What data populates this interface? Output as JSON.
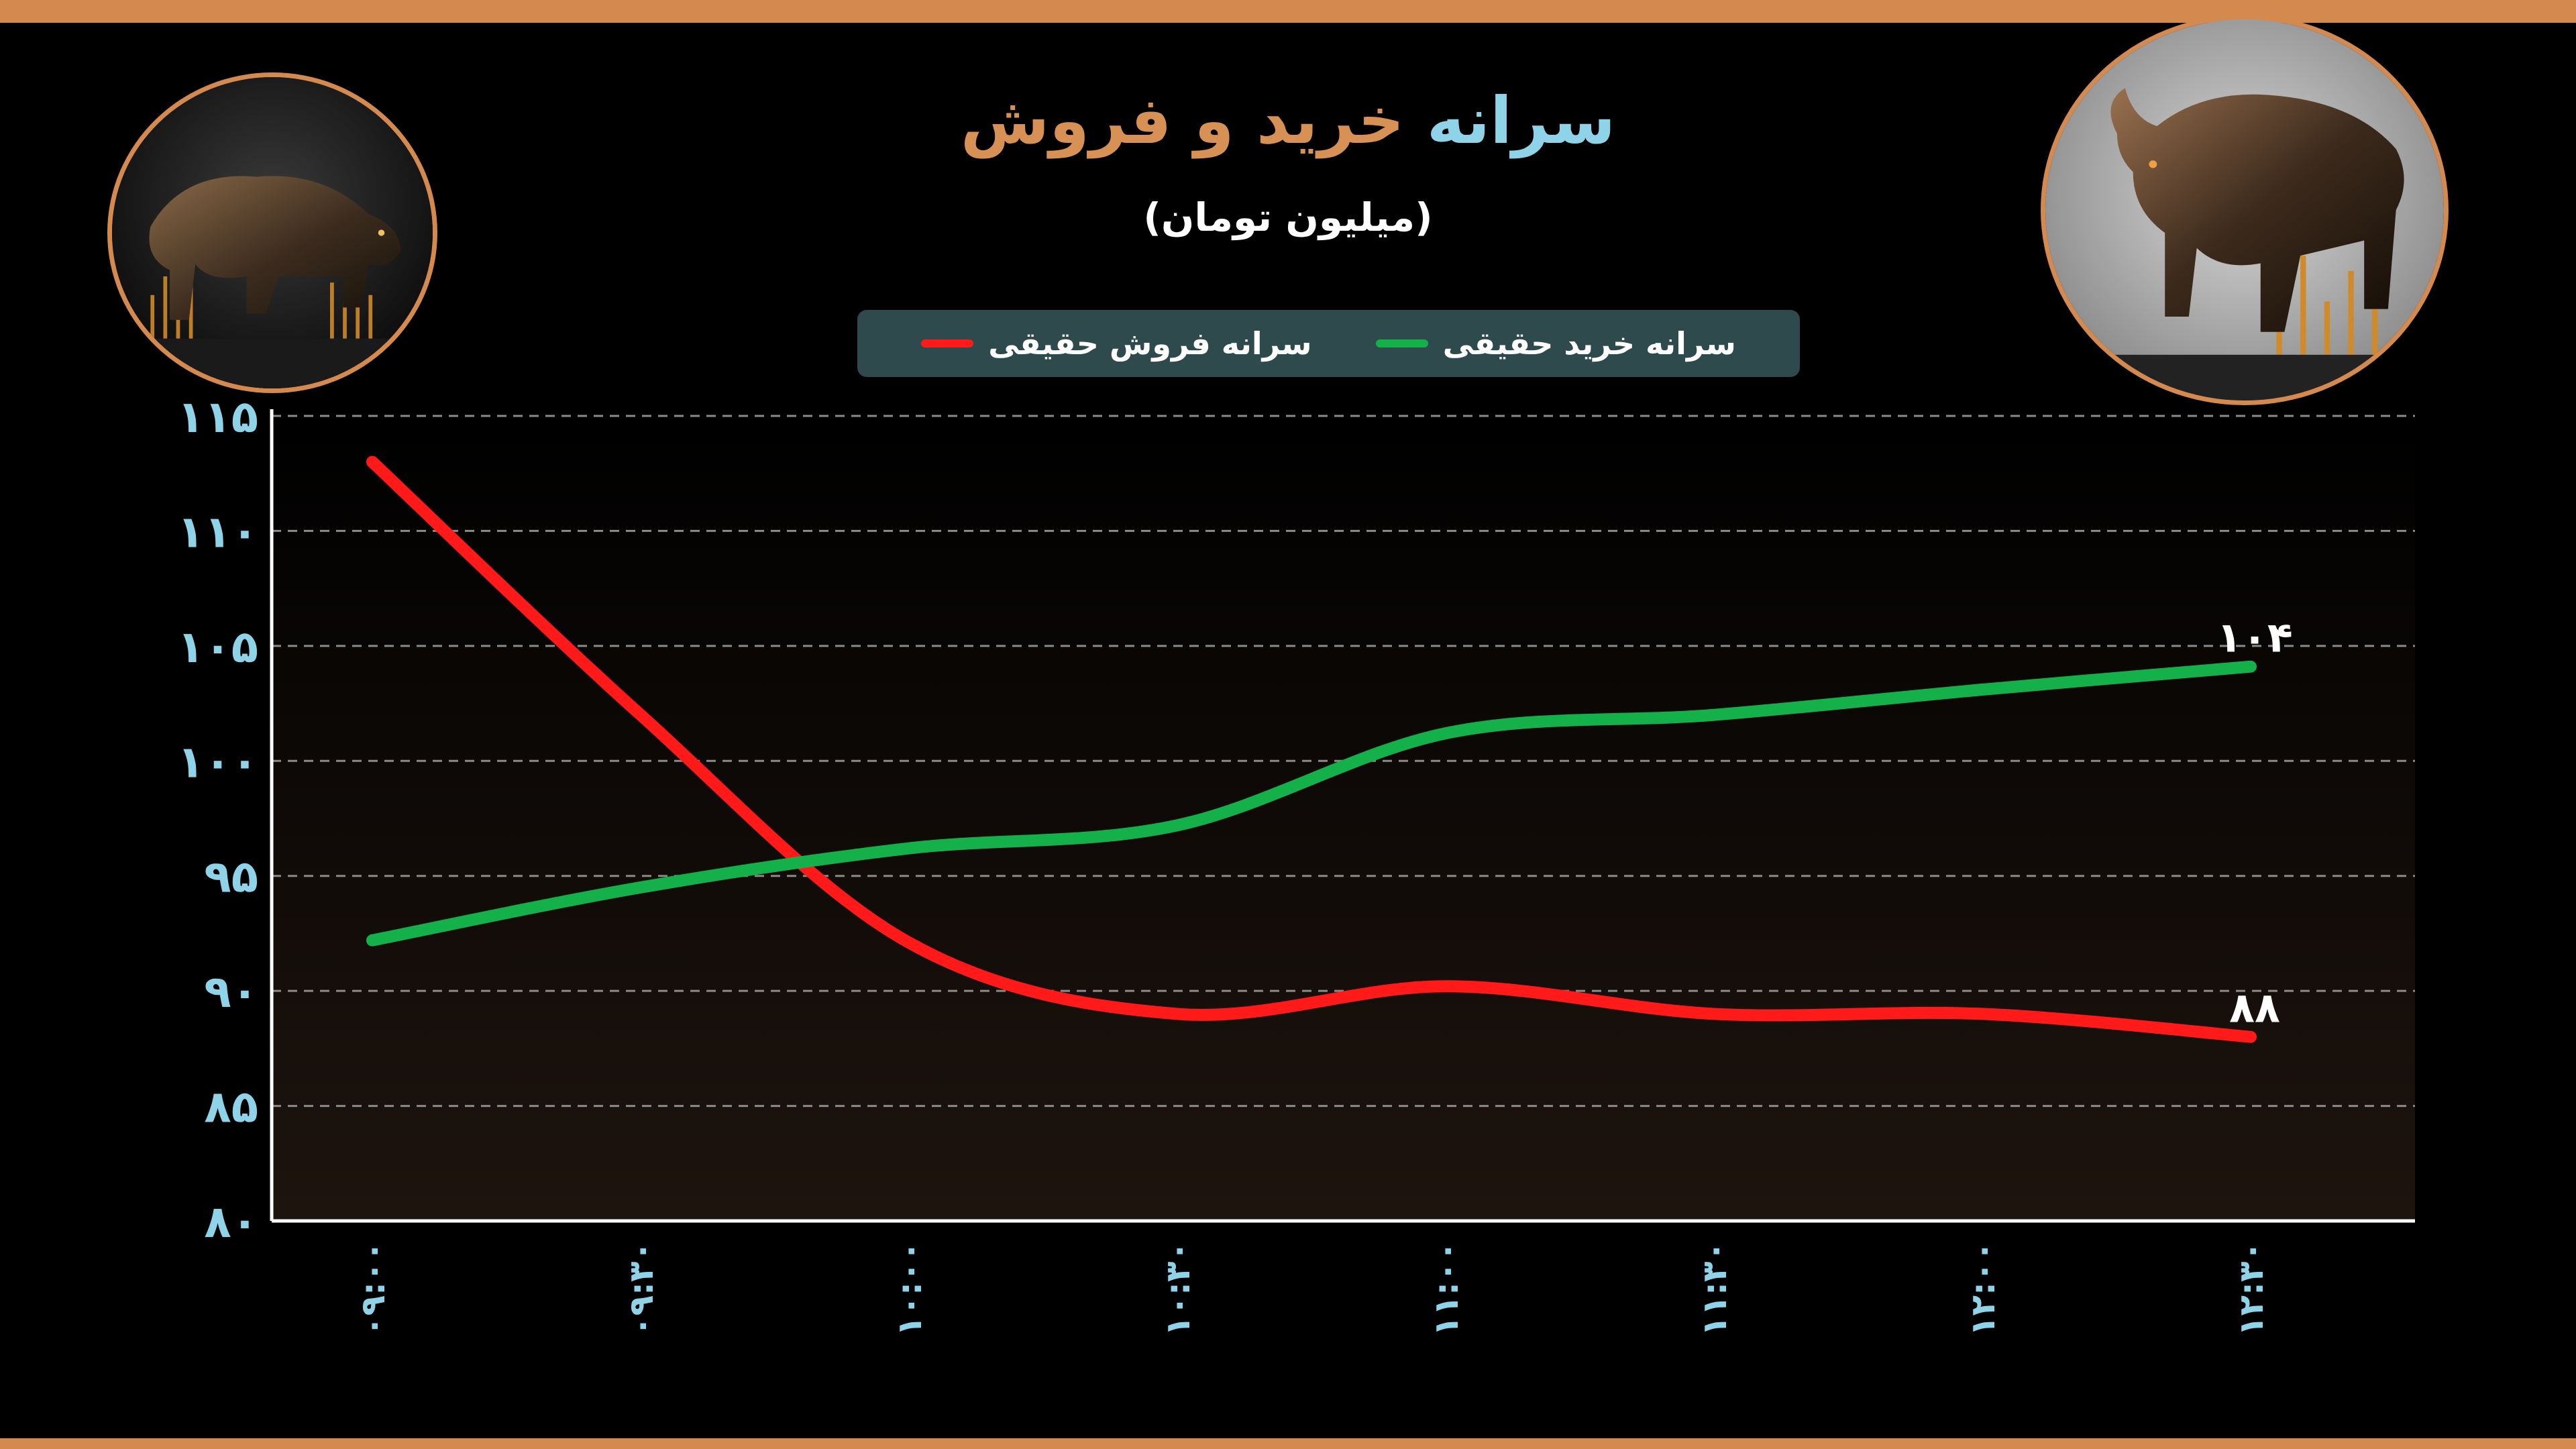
{
  "title": {
    "part_blue": "سرانه",
    "part_orange": "خرید و فروش"
  },
  "subtitle": "(میلیون تومان)",
  "legend": [
    {
      "label": "سرانه فروش حقیقی",
      "color": "#FF1A1A"
    },
    {
      "label": "سرانه خرید حقیقی",
      "color": "#14B04A"
    }
  ],
  "images": {
    "left": "bear-icon",
    "right": "bull-icon"
  },
  "colors": {
    "accent": "#D4894F",
    "ticks": "#8ED3E8",
    "title_orange": "#D89154"
  },
  "chart_data": {
    "type": "line",
    "title": "سرانه خرید و فروش",
    "subtitle": "(میلیون تومان)",
    "x": [
      "۰۹:۰۰",
      "۰۹:۳۰",
      "۱۰:۰۰",
      "۱۰:۳۰",
      "۱۱:۰۰",
      "۱۱:۳۰",
      "۱۲:۰۰",
      "۱۲:۳۰"
    ],
    "ylim": [
      80,
      115
    ],
    "yticks": [
      80,
      85,
      90,
      95,
      100,
      105,
      110,
      115
    ],
    "ytick_labels": [
      "۸۰",
      "۸۵",
      "۹۰",
      "۹۵",
      "۱۰۰",
      "۱۰۵",
      "۱۱۰",
      "۱۱۵"
    ],
    "grid": true,
    "legend_position": "top-center",
    "series": [
      {
        "name": "سرانه فروش حقیقی",
        "color": "#FF1A1A",
        "values": [
          113,
          102,
          92.1,
          89,
          90.2,
          89,
          89,
          88
        ],
        "end_label": "۸۸"
      },
      {
        "name": "سرانه خرید حقیقی",
        "color": "#14B04A",
        "values": [
          92.2,
          94.5,
          96.2,
          97.2,
          101.2,
          102,
          103.1,
          104.1
        ],
        "end_label": "۱۰۴"
      }
    ]
  }
}
